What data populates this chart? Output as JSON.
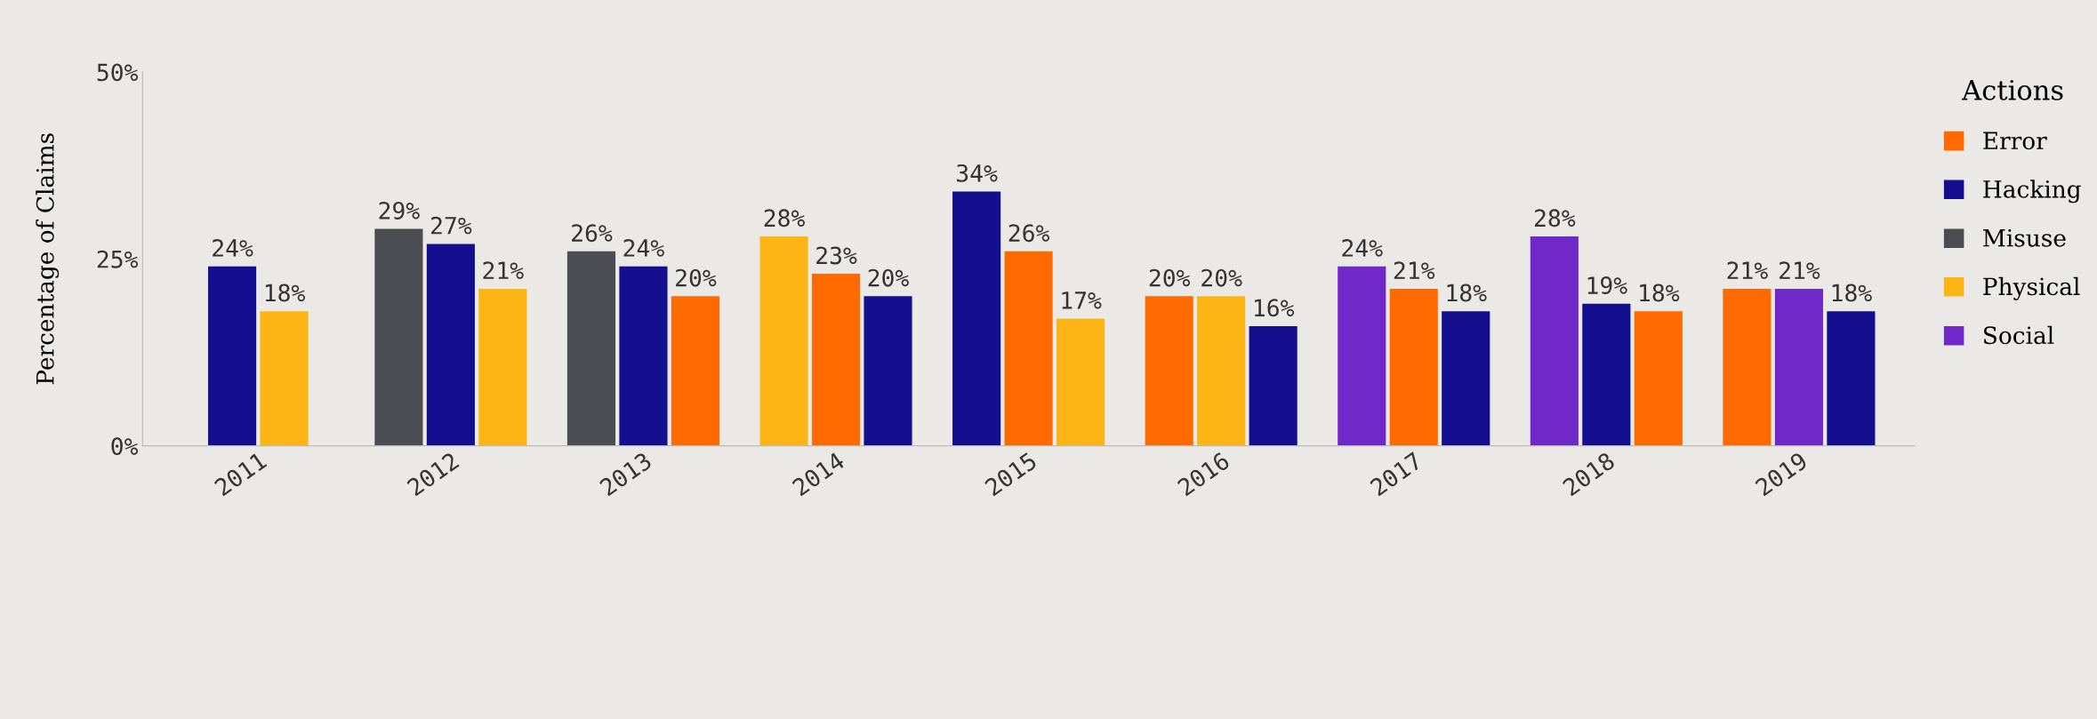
{
  "chart_data": {
    "type": "bar",
    "ylabel": "Percentage of Claims",
    "legend_title": "Actions",
    "categories": [
      "2011",
      "2012",
      "2013",
      "2014",
      "2015",
      "2016",
      "2017",
      "2018",
      "2019"
    ],
    "series": [
      {
        "name": "Error",
        "color": "#ff6a00",
        "values": [
          null,
          null,
          20,
          23,
          26,
          20,
          21,
          18,
          21
        ],
        "value_labels": [
          null,
          null,
          "20%",
          "23%",
          "26%",
          "20%",
          "21%",
          "18%",
          "21%"
        ]
      },
      {
        "name": "Hacking",
        "color": "#140f8f",
        "values": [
          24,
          27,
          24,
          20,
          34,
          16,
          18,
          19,
          18
        ],
        "value_labels": [
          "24%",
          "27%",
          "24%",
          "20%",
          "34%",
          "16%",
          "18%",
          "19%",
          "18%"
        ]
      },
      {
        "name": "Misuse",
        "color": "#4a4d52",
        "values": [
          null,
          29,
          26,
          null,
          null,
          null,
          null,
          null,
          null
        ],
        "value_labels": [
          null,
          "29%",
          "26%",
          null,
          null,
          null,
          null,
          null,
          null
        ]
      },
      {
        "name": "Physical",
        "color": "#fdb515",
        "values": [
          18,
          21,
          null,
          28,
          17,
          20,
          null,
          null,
          null
        ],
        "value_labels": [
          "18%",
          "21%",
          null,
          "28%",
          "17%",
          "20%",
          null,
          null,
          null
        ]
      },
      {
        "name": "Social",
        "color": "#7028c8",
        "values": [
          null,
          null,
          null,
          null,
          null,
          null,
          24,
          28,
          21
        ],
        "value_labels": [
          null,
          null,
          null,
          null,
          null,
          null,
          "24%",
          "28%",
          "21%"
        ]
      }
    ],
    "ylim": [
      0,
      50
    ],
    "yticks": [
      {
        "value": 0,
        "label": "0%"
      },
      {
        "value": 25,
        "label": "25%"
      },
      {
        "value": 50,
        "label": "50%"
      }
    ],
    "grid": false,
    "legend": "right"
  }
}
